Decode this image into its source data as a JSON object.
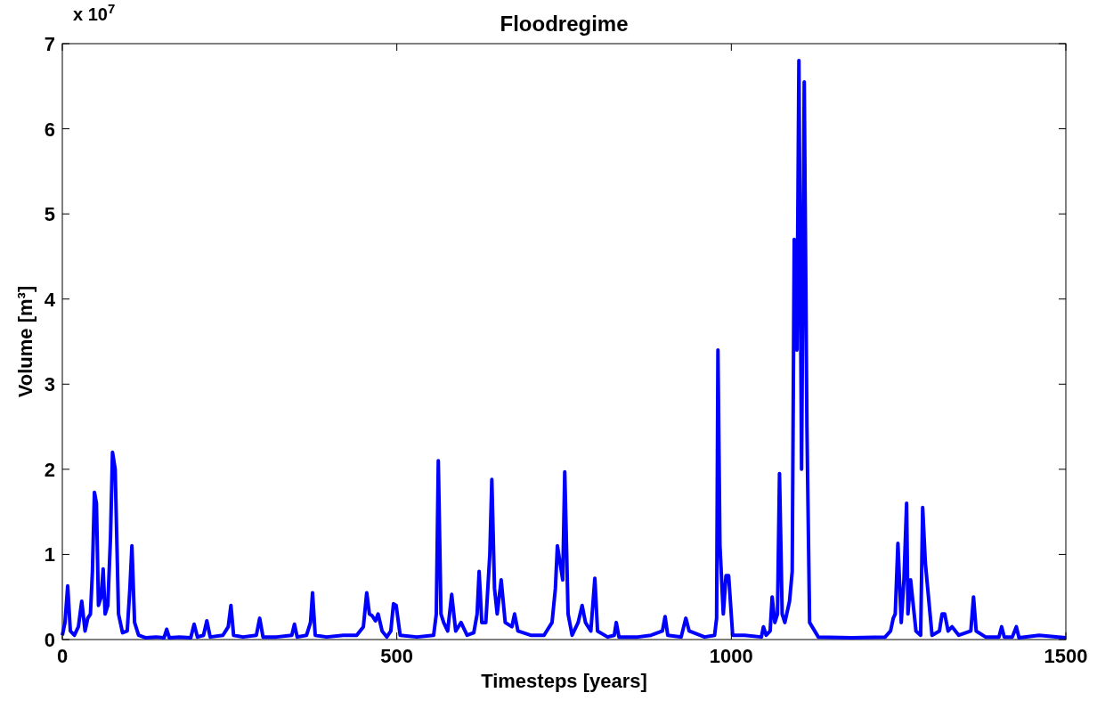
{
  "chart_data": {
    "type": "line",
    "title": "Floodregime",
    "xlabel": "Timesteps [years]",
    "ylabel": "Volume [m³]",
    "annotations": [
      "x 10$^{7}$"
    ],
    "xlim": [
      0,
      1500
    ],
    "xticks": [
      0,
      500,
      1000,
      1500
    ],
    "ylim": [
      0,
      7
    ],
    "yticks": [
      0,
      1,
      2,
      3,
      4,
      5,
      6,
      7
    ],
    "grid": false,
    "marker": "none",
    "line_style": "solid",
    "series": [
      {
        "color": "#0000ff",
        "x": [
          0,
          4,
          8,
          12,
          18,
          24,
          29,
          34,
          38,
          42,
          45,
          48,
          51,
          54,
          58,
          61,
          64,
          68,
          72,
          75,
          79,
          84,
          90,
          97,
          101,
          104,
          108,
          114,
          125,
          140,
          152,
          156,
          160,
          175,
          192,
          197,
          202,
          211,
          216,
          221,
          240,
          248,
          252,
          256,
          270,
          290,
          295,
          300,
          320,
          343,
          347,
          351,
          365,
          371,
          374,
          378,
          395,
          420,
          440,
          450,
          455,
          459,
          463,
          468,
          472,
          478,
          485,
          491,
          495,
          499,
          505,
          530,
          555,
          559,
          562,
          566,
          570,
          576,
          582,
          588,
          596,
          605,
          615,
          620,
          623,
          627,
          633,
          639,
          642,
          646,
          650,
          656,
          662,
          672,
          676,
          681,
          700,
          720,
          732,
          737,
          740,
          744,
          748,
          751,
          756,
          762,
          771,
          777,
          782,
          790,
          796,
          800,
          815,
          825,
          828,
          832,
          860,
          880,
          897,
          901,
          905,
          925,
          932,
          937,
          960,
          975,
          978,
          980,
          983,
          988,
          992,
          996,
          1002,
          1020,
          1045,
          1048,
          1052,
          1058,
          1061,
          1065,
          1069,
          1072,
          1076,
          1080,
          1087,
          1091,
          1094,
          1098,
          1101,
          1105,
          1109,
          1113,
          1117,
          1130,
          1180,
          1230,
          1238,
          1242,
          1245,
          1249,
          1254,
          1258,
          1262,
          1264,
          1268,
          1276,
          1283,
          1286,
          1290,
          1300,
          1311,
          1315,
          1319,
          1324,
          1330,
          1340,
          1358,
          1362,
          1366,
          1380,
          1400,
          1404,
          1408,
          1420,
          1426,
          1430,
          1460,
          1500
        ],
        "values": [
          0.05,
          0.2,
          0.63,
          0.1,
          0.05,
          0.15,
          0.45,
          0.1,
          0.25,
          0.3,
          0.8,
          1.73,
          1.6,
          0.4,
          0.5,
          0.83,
          0.3,
          0.4,
          1.2,
          2.2,
          2.0,
          0.3,
          0.08,
          0.1,
          0.6,
          1.1,
          0.2,
          0.05,
          0.02,
          0.03,
          0.02,
          0.12,
          0.02,
          0.03,
          0.02,
          0.18,
          0.03,
          0.05,
          0.22,
          0.03,
          0.05,
          0.15,
          0.4,
          0.05,
          0.03,
          0.05,
          0.25,
          0.03,
          0.03,
          0.05,
          0.18,
          0.03,
          0.05,
          0.2,
          0.55,
          0.05,
          0.03,
          0.05,
          0.05,
          0.15,
          0.55,
          0.3,
          0.28,
          0.22,
          0.3,
          0.1,
          0.03,
          0.1,
          0.42,
          0.4,
          0.05,
          0.03,
          0.05,
          0.3,
          2.1,
          0.3,
          0.2,
          0.1,
          0.53,
          0.1,
          0.2,
          0.05,
          0.08,
          0.3,
          0.8,
          0.2,
          0.2,
          1.0,
          1.88,
          0.6,
          0.3,
          0.7,
          0.2,
          0.15,
          0.3,
          0.1,
          0.05,
          0.05,
          0.2,
          0.6,
          1.1,
          0.9,
          0.7,
          1.97,
          0.3,
          0.05,
          0.2,
          0.4,
          0.2,
          0.1,
          0.72,
          0.1,
          0.03,
          0.05,
          0.2,
          0.03,
          0.03,
          0.05,
          0.1,
          0.27,
          0.05,
          0.03,
          0.25,
          0.1,
          0.03,
          0.05,
          0.25,
          3.4,
          1.1,
          0.3,
          0.75,
          0.75,
          0.05,
          0.05,
          0.03,
          0.15,
          0.05,
          0.1,
          0.5,
          0.2,
          0.3,
          1.95,
          0.3,
          0.2,
          0.45,
          0.8,
          4.7,
          3.4,
          6.8,
          2.0,
          6.55,
          2.5,
          0.2,
          0.03,
          0.02,
          0.03,
          0.1,
          0.25,
          0.3,
          1.13,
          0.2,
          0.7,
          1.6,
          0.3,
          0.7,
          0.1,
          0.05,
          1.55,
          0.9,
          0.05,
          0.1,
          0.3,
          0.3,
          0.1,
          0.15,
          0.05,
          0.1,
          0.5,
          0.1,
          0.03,
          0.03,
          0.15,
          0.03,
          0.03,
          0.15,
          0.02,
          0.05,
          0.02
        ]
      }
    ]
  }
}
